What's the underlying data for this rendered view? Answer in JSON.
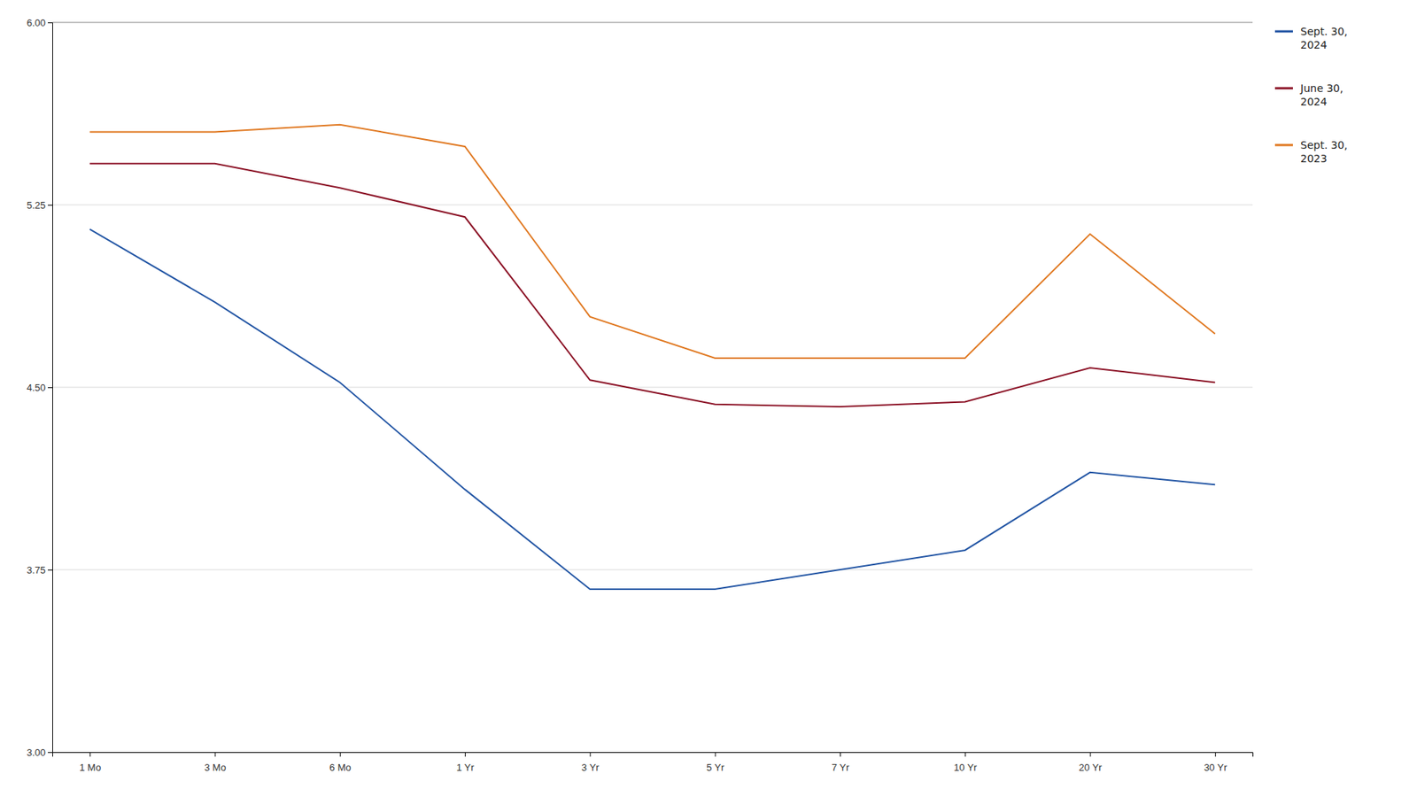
{
  "chart_data": {
    "type": "line",
    "categories": [
      "1 Mo",
      "3 Mo",
      "6 Mo",
      "1 Yr",
      "3 Yr",
      "5 Yr",
      "7 Yr",
      "10 Yr",
      "20 Yr",
      "30 Yr"
    ],
    "series": [
      {
        "name": "Sept. 30,\n2024",
        "color": "#2255a4",
        "values": [
          5.15,
          4.85,
          4.52,
          4.08,
          3.67,
          3.67,
          3.75,
          3.83,
          4.15,
          4.1
        ]
      },
      {
        "name": "June 30,\n2024",
        "color": "#8b1025",
        "values": [
          5.42,
          5.42,
          5.32,
          5.2,
          4.53,
          4.43,
          4.42,
          4.44,
          4.58,
          4.52
        ]
      },
      {
        "name": "Sept. 30,\n2023",
        "color": "#e07820",
        "values": [
          5.55,
          5.55,
          5.58,
          5.49,
          4.79,
          4.62,
          4.62,
          4.62,
          5.13,
          4.72
        ]
      }
    ],
    "ylim": [
      3.0,
      6.0
    ],
    "yticks": [
      {
        "value": 3.0,
        "label": "3.00"
      },
      3.75,
      {
        "value": 4.5,
        "label": "4.50"
      },
      5.25,
      {
        "value": 6.0,
        "label": "6.00"
      }
    ],
    "grid": true,
    "legend": "right"
  }
}
